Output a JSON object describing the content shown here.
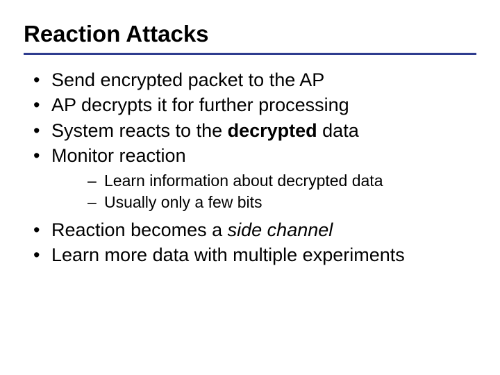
{
  "slide": {
    "title": "Reaction Attacks",
    "title_fontsize": 33,
    "title_color": "#000000",
    "rule_color": "#2f3c8f",
    "rule_height": 3,
    "body_fontsize_l1": 27,
    "body_fontsize_l2": 23,
    "text_color": "#000000",
    "background_color": "#ffffff",
    "bullets": {
      "b1": "Send encrypted packet to the AP",
      "b2": "AP decrypts it for further processing",
      "b3_pre": "System reacts to the ",
      "b3_bold": "decrypted",
      "b3_post": " data",
      "b4": "Monitor reaction",
      "b4_sub1": "Learn information about decrypted data",
      "b4_sub2": "Usually only a few bits",
      "b5_pre": "Reaction becomes a ",
      "b5_italic": "side channel",
      "b6": "Learn more data with multiple experiments"
    }
  }
}
